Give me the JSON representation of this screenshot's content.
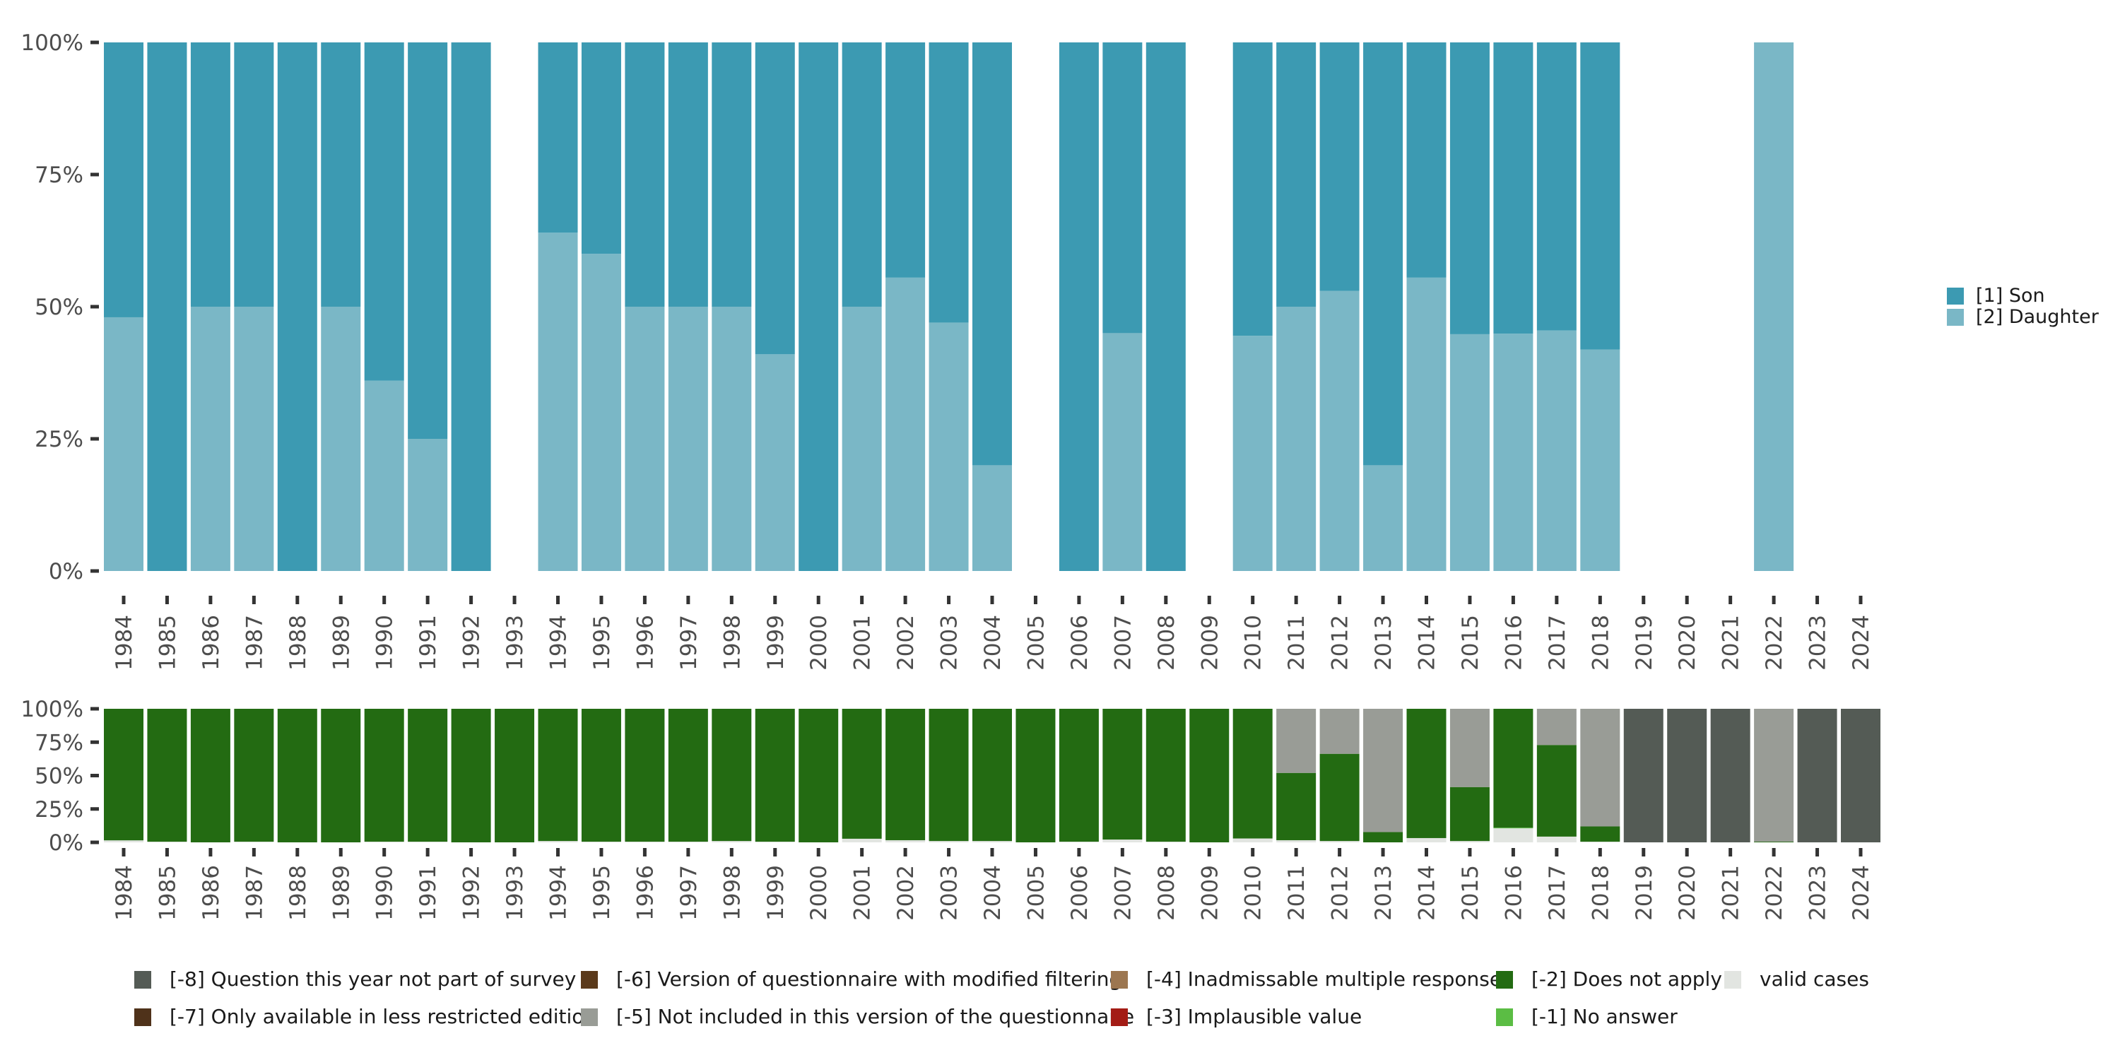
{
  "chart_data": [
    {
      "id": "top",
      "type": "bar",
      "stacked": true,
      "normalized": true,
      "title": "",
      "xlabel": "",
      "ylabel": "",
      "ylim": [
        0,
        100
      ],
      "yticks": [
        "0%",
        "25%",
        "50%",
        "75%",
        "100%"
      ],
      "categories": [
        "1984",
        "1985",
        "1986",
        "1987",
        "1988",
        "1989",
        "1990",
        "1991",
        "1992",
        "1993",
        "1994",
        "1995",
        "1996",
        "1997",
        "1998",
        "1999",
        "2000",
        "2001",
        "2002",
        "2003",
        "2004",
        "2005",
        "2006",
        "2007",
        "2008",
        "2009",
        "2010",
        "2011",
        "2012",
        "2013",
        "2014",
        "2015",
        "2016",
        "2017",
        "2018",
        "2019",
        "2020",
        "2021",
        "2022",
        "2023",
        "2024"
      ],
      "series": [
        {
          "name": "[2] Daughter",
          "color": "#7AB7C6",
          "values": [
            48,
            0,
            50,
            50,
            0,
            50,
            36,
            25,
            0,
            null,
            64,
            60,
            50,
            50,
            50,
            41,
            0,
            50,
            55.5,
            47,
            20,
            null,
            0,
            45,
            0,
            null,
            44.5,
            50,
            53,
            20,
            55.5,
            44.8,
            44.9,
            45.5,
            41.9,
            null,
            null,
            null,
            100,
            null,
            null
          ]
        },
        {
          "name": "[1] Son",
          "color": "#3C9AB2",
          "values": [
            52,
            100,
            50,
            50,
            100,
            50,
            64,
            75,
            100,
            null,
            36,
            40,
            50,
            50,
            50,
            59,
            100,
            50,
            44.5,
            53,
            80,
            null,
            100,
            55,
            100,
            null,
            55.5,
            50,
            47,
            80,
            44.5,
            55.2,
            55.1,
            54.5,
            58.1,
            null,
            null,
            null,
            0,
            null,
            null
          ]
        }
      ],
      "legend": {
        "placement": "right",
        "items": [
          {
            "label": "[1] Son",
            "color": "#3C9AB2"
          },
          {
            "label": "[2] Daughter",
            "color": "#7AB7C6"
          }
        ]
      }
    },
    {
      "id": "bottom",
      "type": "bar",
      "stacked": true,
      "normalized": true,
      "title": "",
      "xlabel": "",
      "ylabel": "",
      "ylim": [
        0,
        100
      ],
      "yticks": [
        "0%",
        "25%",
        "50%",
        "75%",
        "100%"
      ],
      "categories": [
        "1984",
        "1985",
        "1986",
        "1987",
        "1988",
        "1989",
        "1990",
        "1991",
        "1992",
        "1993",
        "1994",
        "1995",
        "1996",
        "1997",
        "1998",
        "1999",
        "2000",
        "2001",
        "2002",
        "2003",
        "2004",
        "2005",
        "2006",
        "2007",
        "2008",
        "2009",
        "2010",
        "2011",
        "2012",
        "2013",
        "2014",
        "2015",
        "2016",
        "2017",
        "2018",
        "2019",
        "2020",
        "2021",
        "2022",
        "2023",
        "2024"
      ],
      "series": [
        {
          "name": "valid cases",
          "color": "#E2E5E1",
          "values": [
            1.5,
            0.5,
            0,
            0.5,
            0,
            0,
            0.5,
            0.5,
            0,
            0,
            1,
            0.5,
            0.5,
            0.5,
            1,
            0.5,
            0,
            2.7,
            1.6,
            1,
            1,
            0,
            0.5,
            2.1,
            0.5,
            0,
            2.9,
            1.6,
            1,
            0,
            3.2,
            1,
            10.5,
            4.3,
            0.5,
            0,
            0,
            0,
            0,
            0,
            0
          ]
        },
        {
          "name": "[-1] No answer",
          "color": "#5BBD44",
          "values": [
            0,
            0,
            0,
            0,
            0,
            0,
            0,
            0,
            0,
            0,
            0,
            0,
            0,
            0,
            0,
            0,
            0,
            0,
            0,
            0,
            0,
            0,
            0,
            0,
            0,
            0,
            0,
            0,
            0,
            0,
            0,
            0,
            0.5,
            0,
            0,
            0,
            0,
            0,
            0,
            0,
            0
          ]
        },
        {
          "name": "[-2] Does not apply",
          "color": "#236B12",
          "values": [
            98.5,
            99.5,
            100,
            99.5,
            100,
            100,
            99.5,
            99.5,
            100,
            100,
            99,
            99.5,
            99.5,
            99.5,
            99,
            99.5,
            100,
            97.3,
            98.4,
            99,
            99,
            100,
            99.5,
            97.9,
            99.5,
            100,
            97.1,
            50.4,
            65.3,
            7.7,
            96.8,
            40.4,
            89,
            68.6,
            11.4,
            0,
            0,
            0,
            0.5,
            0,
            0
          ]
        },
        {
          "name": "[-3] Implausible value",
          "color": "#A31C15",
          "values": [
            0,
            0,
            0,
            0,
            0,
            0,
            0,
            0,
            0,
            0,
            0,
            0,
            0,
            0,
            0,
            0,
            0,
            0,
            0,
            0,
            0,
            0,
            0,
            0,
            0,
            0,
            0,
            0,
            0,
            0,
            0,
            0,
            0,
            0,
            0,
            0,
            0,
            0,
            0,
            0,
            0
          ]
        },
        {
          "name": "[-4] Inadmissable multiple response",
          "color": "#9C7650",
          "values": [
            0,
            0,
            0,
            0,
            0,
            0,
            0,
            0,
            0,
            0,
            0,
            0,
            0,
            0,
            0,
            0,
            0,
            0,
            0,
            0,
            0,
            0,
            0,
            0,
            0,
            0,
            0,
            0,
            0,
            0,
            0,
            0,
            0,
            0,
            0,
            0,
            0,
            0,
            0,
            0,
            0
          ]
        },
        {
          "name": "[-5] Not included in this version of the questionnaire",
          "color": "#999C96",
          "values": [
            0,
            0,
            0,
            0,
            0,
            0,
            0,
            0,
            0,
            0,
            0,
            0,
            0,
            0,
            0,
            0,
            0,
            0,
            0,
            0,
            0,
            0,
            0,
            0,
            0,
            0,
            0,
            48,
            33.7,
            92.3,
            0,
            58.6,
            0,
            27.1,
            88.1,
            0,
            0,
            0,
            99.5,
            0,
            0
          ]
        },
        {
          "name": "[-6] Version of questionnaire with modified filtering",
          "color": "#5B3A1B",
          "values": [
            0,
            0,
            0,
            0,
            0,
            0,
            0,
            0,
            0,
            0,
            0,
            0,
            0,
            0,
            0,
            0,
            0,
            0,
            0,
            0,
            0,
            0,
            0,
            0,
            0,
            0,
            0,
            0,
            0,
            0,
            0,
            0,
            0,
            0,
            0,
            0,
            0,
            0,
            0,
            0,
            0
          ]
        },
        {
          "name": "[-7] Only available in less restricted edition",
          "color": "#4F321A",
          "values": [
            0,
            0,
            0,
            0,
            0,
            0,
            0,
            0,
            0,
            0,
            0,
            0,
            0,
            0,
            0,
            0,
            0,
            0,
            0,
            0,
            0,
            0,
            0,
            0,
            0,
            0,
            0,
            0,
            0,
            0,
            0,
            0,
            0,
            0,
            0,
            0,
            0,
            0,
            0,
            0,
            0
          ]
        },
        {
          "name": "[-8] Question this year not part of survey",
          "color": "#545B55",
          "values": [
            0,
            0,
            0,
            0,
            0,
            0,
            0,
            0,
            0,
            0,
            0,
            0,
            0,
            0,
            0,
            0,
            0,
            0,
            0,
            0,
            0,
            0,
            0,
            0,
            0,
            0,
            0,
            0,
            0,
            0,
            0,
            0,
            0,
            0,
            0,
            100,
            100,
            100,
            0,
            100,
            100
          ]
        }
      ],
      "legend": {
        "placement": "bottom",
        "items": [
          {
            "label": "[-8] Question this year not part of survey",
            "color": "#545B55"
          },
          {
            "label": "[-7] Only available in less restricted edition",
            "color": "#4F321A"
          },
          {
            "label": "[-6] Version of questionnaire with modified filtering",
            "color": "#5B3A1B"
          },
          {
            "label": "[-5] Not included in this version of the questionnaire",
            "color": "#999C96"
          },
          {
            "label": "[-4] Inadmissable multiple response",
            "color": "#9C7650"
          },
          {
            "label": "[-3] Implausible value",
            "color": "#A31C15"
          },
          {
            "label": "[-2] Does not apply",
            "color": "#236B12"
          },
          {
            "label": "[-1] No answer",
            "color": "#5BBD44"
          },
          {
            "label": "valid cases",
            "color": "#E2E5E1"
          }
        ]
      }
    }
  ]
}
